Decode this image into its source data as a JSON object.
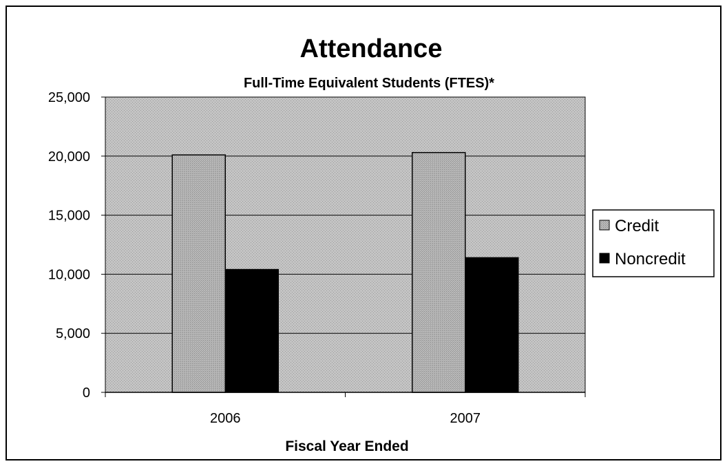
{
  "chart_data": {
    "type": "bar",
    "title": "Attendance",
    "subtitle": "Full-Time Equivalent Students (FTES)*",
    "xlabel": "Fiscal Year Ended",
    "ylabel": "",
    "categories": [
      "2006",
      "2007"
    ],
    "series": [
      {
        "name": "Credit",
        "values": [
          20100,
          20300
        ],
        "color": "#b4b4b4"
      },
      {
        "name": "Noncredit",
        "values": [
          10400,
          11400
        ],
        "color": "#000000"
      }
    ],
    "ylim": [
      0,
      25000
    ],
    "yticks": [
      0,
      5000,
      10000,
      15000,
      20000,
      25000
    ],
    "ytick_labels": [
      "0",
      "5,000",
      "10,000",
      "15,000",
      "20,000",
      "25,000"
    ],
    "grid": true,
    "legend_position": "right",
    "plot_background": "#bdbdbd"
  }
}
